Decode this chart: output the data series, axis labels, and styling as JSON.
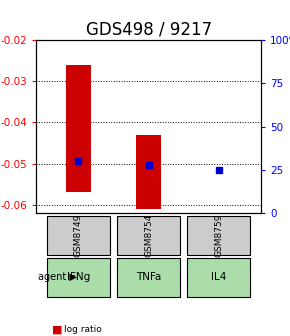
{
  "title": "GDS498 / 9217",
  "samples": [
    "GSM8749",
    "GSM8754",
    "GSM8759"
  ],
  "agents": [
    "IFNg",
    "TNFa",
    "IL4"
  ],
  "log_ratios": [
    -0.057,
    -0.061,
    -0.051
  ],
  "log_ratio_tops": [
    -0.026,
    -0.043,
    -0.051
  ],
  "percentile_ranks": [
    30,
    28,
    25
  ],
  "ylim_left": [
    -0.062,
    -0.02
  ],
  "ylim_right": [
    0,
    100
  ],
  "yticks_left": [
    -0.06,
    -0.05,
    -0.04,
    -0.03,
    -0.02
  ],
  "yticks_right": [
    0,
    25,
    50,
    75,
    100
  ],
  "bar_color": "#cc0000",
  "dot_color": "#0000cc",
  "sample_bg": "#cccccc",
  "agent_bg": "#99ee99",
  "agent_bg_light": "#bbffbb",
  "grid_color": "#000000",
  "title_fontsize": 12,
  "bar_width": 0.35,
  "x_positions": [
    0,
    1,
    2
  ]
}
